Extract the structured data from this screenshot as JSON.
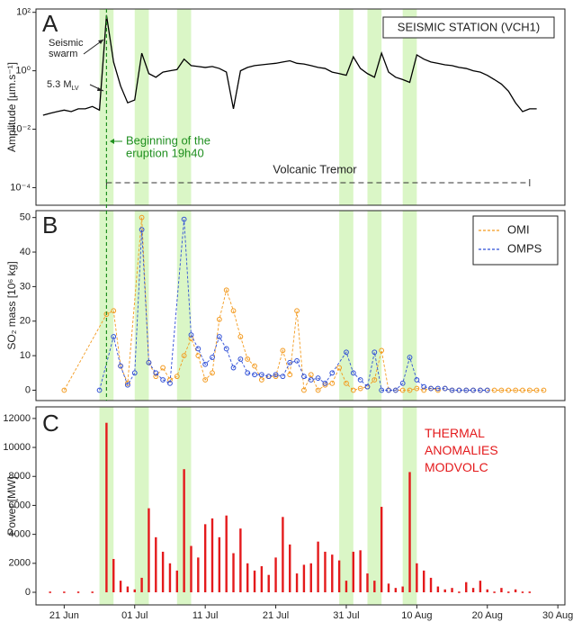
{
  "shared": {
    "xlim": [
      "17 Jun",
      "31 Aug"
    ],
    "eruption_line": "27 Jun",
    "highlight_color": "#daf6c6",
    "highlight_periods": [
      [
        "26 Jun",
        "28 Jun"
      ],
      [
        "01 Jul",
        "03 Jul"
      ],
      [
        "07 Jul",
        "09 Jul"
      ],
      [
        "30 Jul",
        "01 Aug"
      ],
      [
        "03 Aug",
        "05 Aug"
      ],
      [
        "08 Aug",
        "10 Aug"
      ]
    ]
  },
  "chart_data": [
    {
      "type": "line",
      "panel_label": "A",
      "title": "SEISMIC STATION (VCH1)",
      "ylabel": "Amplitude [µm.s⁻¹]",
      "log_y": true,
      "ylim": [
        2.5e-05,
        130
      ],
      "yticks": [
        {
          "value": 0.0001,
          "label": "10⁻⁴"
        },
        {
          "value": 0.01,
          "label": "10⁻²"
        },
        {
          "value": 1,
          "label": "10⁰"
        },
        {
          "value": 100,
          "label": "10²"
        }
      ],
      "color": "#000000",
      "line_style": "solid",
      "annotations": {
        "swarm": [
          "Seismic",
          "swarm"
        ],
        "magnitude": [
          "5.3 M",
          "LV"
        ],
        "eruption": [
          "Beginning of the",
          "eruption 19h40"
        ],
        "tremor": "Volcanic Tremor"
      },
      "tremor_period": [
        "27 Jun",
        "26 Aug"
      ],
      "x": [
        "18 Jun",
        "19 Jun",
        "20 Jun",
        "21 Jun",
        "22 Jun",
        "23 Jun",
        "24 Jun",
        "25 Jun",
        "26 Jun",
        "27 Jun",
        "28 Jun",
        "29 Jun",
        "30 Jun",
        "01 Jul",
        "02 Jul",
        "03 Jul",
        "04 Jul",
        "05 Jul",
        "06 Jul",
        "07 Jul",
        "08 Jul",
        "09 Jul",
        "10 Jul",
        "11 Jul",
        "12 Jul",
        "13 Jul",
        "14 Jul",
        "15 Jul",
        "16 Jul",
        "17 Jul",
        "18 Jul",
        "19 Jul",
        "20 Jul",
        "21 Jul",
        "22 Jul",
        "23 Jul",
        "24 Jul",
        "25 Jul",
        "26 Jul",
        "27 Jul",
        "28 Jul",
        "29 Jul",
        "30 Jul",
        "31 Jul",
        "01 Aug",
        "02 Aug",
        "03 Aug",
        "04 Aug",
        "05 Aug",
        "06 Aug",
        "07 Aug",
        "08 Aug",
        "09 Aug",
        "10 Aug",
        "11 Aug",
        "12 Aug",
        "13 Aug",
        "14 Aug",
        "15 Aug",
        "16 Aug",
        "17 Aug",
        "18 Aug",
        "19 Aug",
        "20 Aug",
        "21 Aug",
        "22 Aug",
        "23 Aug",
        "24 Aug",
        "25 Aug",
        "26 Aug",
        "27 Aug"
      ],
      "values": [
        0.03,
        0.035,
        0.04,
        0.045,
        0.04,
        0.05,
        0.05,
        0.06,
        0.045,
        80,
        2,
        0.3,
        0.08,
        0.1,
        4,
        0.8,
        0.6,
        0.9,
        1.0,
        1.1,
        2.5,
        1.5,
        1.4,
        1.3,
        1.4,
        1.2,
        0.9,
        0.05,
        1.0,
        1.3,
        1.5,
        1.6,
        1.7,
        1.8,
        2.0,
        2.2,
        1.8,
        1.7,
        1.5,
        1.3,
        1.2,
        0.9,
        0.8,
        0.7,
        3,
        1.2,
        0.8,
        0.6,
        4,
        0.9,
        0.6,
        0.5,
        0.4,
        3.5,
        2.5,
        2,
        1.8,
        1.6,
        1.5,
        1.3,
        1.2,
        1.0,
        0.9,
        0.7,
        0.5,
        0.35,
        0.2,
        0.08,
        0.04,
        0.05,
        0.05
      ]
    },
    {
      "type": "line",
      "panel_label": "B",
      "ylabel": "SO₂ mass [10⁶ kg]",
      "ylim": [
        -3,
        52
      ],
      "yticks": [
        0,
        10,
        20,
        30,
        40,
        50
      ],
      "line_style": "dashed",
      "markers": true,
      "legend": "upper right",
      "series": [
        {
          "name": "OMI",
          "color": "#f39a1e",
          "x": [
            "21 Jun",
            "27 Jun",
            "28 Jun",
            "29 Jun",
            "30 Jun",
            "02 Jul",
            "03 Jul",
            "04 Jul",
            "05 Jul",
            "06 Jul",
            "07 Jul",
            "08 Jul",
            "09 Jul",
            "10 Jul",
            "11 Jul",
            "12 Jul",
            "13 Jul",
            "14 Jul",
            "15 Jul",
            "16 Jul",
            "17 Jul",
            "18 Jul",
            "19 Jul",
            "20 Jul",
            "21 Jul",
            "22 Jul",
            "23 Jul",
            "24 Jul",
            "25 Jul",
            "26 Jul",
            "27 Jul",
            "28 Jul",
            "29 Jul",
            "30 Jul",
            "31 Jul",
            "01 Aug",
            "02 Aug",
            "03 Aug",
            "04 Aug",
            "05 Aug",
            "06 Aug",
            "07 Aug",
            "08 Aug",
            "09 Aug",
            "10 Aug",
            "11 Aug",
            "12 Aug",
            "13 Aug",
            "14 Aug",
            "15 Aug",
            "16 Aug",
            "17 Aug",
            "18 Aug",
            "19 Aug",
            "20 Aug",
            "21 Aug",
            "22 Aug",
            "23 Aug",
            "24 Aug",
            "25 Aug",
            "26 Aug",
            "27 Aug",
            "28 Aug"
          ],
          "values": [
            0,
            22,
            23,
            7,
            2,
            50,
            8,
            4,
            6.5,
            3,
            4,
            10,
            15,
            10,
            3,
            5,
            20.5,
            29,
            23,
            15.5,
            9,
            7,
            3,
            4,
            4,
            11.5,
            4.5,
            23,
            0,
            4.5,
            0,
            1.5,
            2,
            6.5,
            2,
            0,
            0.5,
            1,
            3,
            11.5,
            0,
            0,
            0,
            0,
            0.5,
            0,
            0.5,
            0,
            0.5,
            0,
            0,
            0,
            0,
            0,
            0,
            0,
            0,
            0,
            0,
            0,
            0,
            0,
            0
          ]
        },
        {
          "name": "OMPS",
          "color": "#2f4fd6",
          "x": [
            "26 Jun",
            "28 Jun",
            "29 Jun",
            "30 Jun",
            "01 Jul",
            "02 Jul",
            "03 Jul",
            "04 Jul",
            "05 Jul",
            "06 Jul",
            "08 Jul",
            "09 Jul",
            "10 Jul",
            "11 Jul",
            "12 Jul",
            "13 Jul",
            "14 Jul",
            "15 Jul",
            "16 Jul",
            "17 Jul",
            "18 Jul",
            "19 Jul",
            "20 Jul",
            "21 Jul",
            "22 Jul",
            "23 Jul",
            "24 Jul",
            "25 Jul",
            "26 Jul",
            "27 Jul",
            "28 Jul",
            "29 Jul",
            "31 Jul",
            "01 Aug",
            "02 Aug",
            "03 Aug",
            "04 Aug",
            "05 Aug",
            "06 Aug",
            "07 Aug",
            "08 Aug",
            "09 Aug",
            "10 Aug",
            "11 Aug",
            "12 Aug",
            "13 Aug",
            "14 Aug",
            "15 Aug",
            "16 Aug",
            "17 Aug",
            "18 Aug",
            "19 Aug",
            "20 Aug"
          ],
          "values": [
            0,
            15.5,
            7,
            1.5,
            5,
            46.5,
            8,
            5,
            3,
            2,
            49.5,
            16,
            12,
            7.5,
            9.5,
            15.5,
            12,
            6.5,
            9,
            5,
            4.5,
            4.5,
            4,
            4.5,
            4,
            8,
            8.5,
            4,
            3,
            3.5,
            2,
            5,
            11,
            5,
            3,
            1,
            11,
            0,
            0,
            0,
            2,
            9.5,
            3,
            1,
            0.5,
            0.5,
            0.5,
            0,
            0,
            0,
            0,
            0,
            0
          ]
        }
      ]
    },
    {
      "type": "bar",
      "panel_label": "C",
      "ylabel": "Power [MW]",
      "ylim": [
        -870,
        12800
      ],
      "yticks": [
        0,
        2000,
        4000,
        6000,
        8000,
        10000,
        12000
      ],
      "xticks": [
        "21 Jun",
        "01 Jul",
        "11 Jul",
        "21 Jul",
        "31 Jul",
        "10 Aug",
        "20 Aug",
        "30 Aug"
      ],
      "series": [
        {
          "name": "THERMAL ANOMALIES MODVOLC",
          "color": "#e41a1c",
          "x": [
            "19 Jun",
            "21 Jun",
            "23 Jun",
            "25 Jun",
            "27 Jun",
            "28 Jun",
            "29 Jun",
            "30 Jun",
            "01 Jul",
            "02 Jul",
            "03 Jul",
            "04 Jul",
            "05 Jul",
            "06 Jul",
            "07 Jul",
            "08 Jul",
            "09 Jul",
            "10 Jul",
            "11 Jul",
            "12 Jul",
            "13 Jul",
            "14 Jul",
            "15 Jul",
            "16 Jul",
            "17 Jul",
            "18 Jul",
            "19 Jul",
            "20 Jul",
            "21 Jul",
            "22 Jul",
            "23 Jul",
            "24 Jul",
            "25 Jul",
            "26 Jul",
            "27 Jul",
            "28 Jul",
            "29 Jul",
            "30 Jul",
            "31 Jul",
            "01 Aug",
            "02 Aug",
            "03 Aug",
            "04 Aug",
            "05 Aug",
            "06 Aug",
            "07 Aug",
            "08 Aug",
            "09 Aug",
            "10 Aug",
            "11 Aug",
            "12 Aug",
            "13 Aug",
            "14 Aug",
            "15 Aug",
            "16 Aug",
            "17 Aug",
            "18 Aug",
            "19 Aug",
            "20 Aug",
            "21 Aug",
            "22 Aug",
            "23 Aug",
            "24 Aug",
            "25 Aug",
            "26 Aug"
          ],
          "values": [
            0,
            0,
            0,
            0,
            11700,
            2300,
            800,
            400,
            200,
            1000,
            5800,
            3800,
            2800,
            2000,
            1500,
            8500,
            3200,
            2400,
            4700,
            5100,
            3800,
            5300,
            2700,
            4400,
            2000,
            1500,
            1800,
            1200,
            2400,
            5200,
            3300,
            1300,
            1900,
            2000,
            3500,
            2800,
            2600,
            2200,
            800,
            2800,
            2900,
            1300,
            800,
            5900,
            600,
            300,
            400,
            8300,
            2000,
            1500,
            1000,
            400,
            200,
            300,
            0,
            700,
            300,
            800,
            200,
            0,
            300,
            0,
            200,
            0,
            0
          ]
        }
      ]
    }
  ]
}
